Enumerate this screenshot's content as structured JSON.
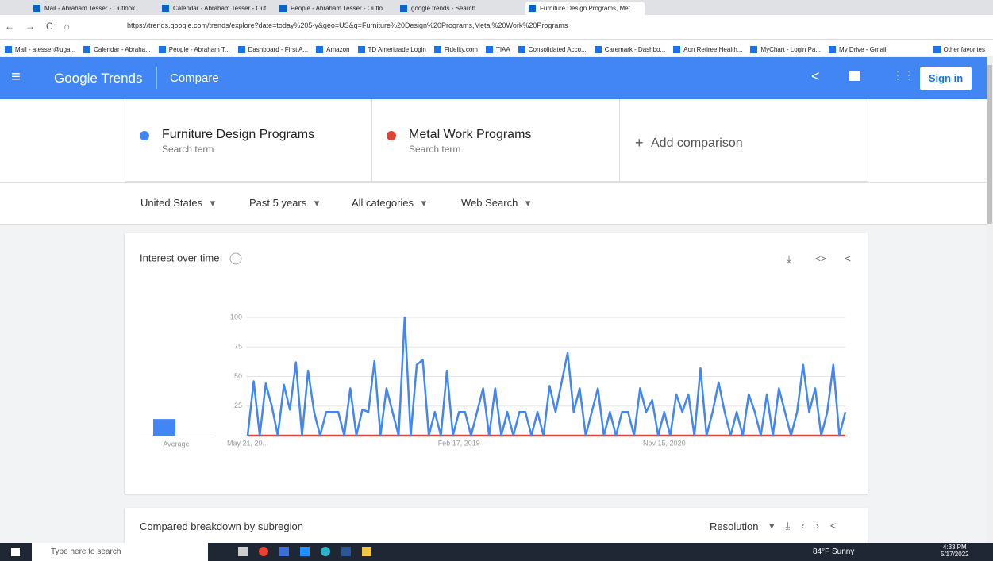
{
  "browser": {
    "tabs": [
      "Mail - Abraham Tesser - Outlook",
      "Calendar - Abraham Tesser - Out",
      "People - Abraham Tesser - Outlo",
      "google trends - Search",
      "Furniture Design Programs, Met"
    ],
    "url": "https://trends.google.com/trends/explore?date=today%205-y&geo=US&q=Furniture%20Design%20Programs,Metal%20Work%20Programs",
    "bookmarks": [
      "Mail - atesser@uga...",
      "Calendar - Abraha...",
      "People - Abraham T...",
      "Dashboard - First A...",
      "Amazon",
      "TD Ameritrade Login",
      "Fidelity.com",
      "TIAA",
      "Consolidated Acco...",
      "Caremark - Dashbo...",
      "Aon Retiree Health...",
      "MyChart - Login Pa...",
      "My Drive - Gmail"
    ],
    "other_favorites": "Other favorites"
  },
  "header": {
    "brand": "Google Trends",
    "page": "Compare",
    "sign_in": "Sign in"
  },
  "terms": {
    "kinds": [
      "Search term",
      "Search term"
    ],
    "add": "Add comparison"
  },
  "filters": [
    "United States",
    "Past 5 years",
    "All categories",
    "Web Search"
  ],
  "chart_data": {
    "type": "line",
    "title": "Interest over time",
    "average_label": "Average",
    "categories": [
      "May 21, 20...",
      null,
      null,
      null,
      null,
      null,
      null,
      null,
      null,
      null,
      null,
      null,
      null,
      null,
      null,
      null,
      null,
      null,
      null,
      null,
      null,
      null,
      null,
      null,
      null,
      null,
      null,
      null,
      null,
      null,
      null,
      null,
      null,
      null,
      null,
      "Feb 17, 2019",
      null,
      null,
      null,
      null,
      null,
      null,
      null,
      null,
      null,
      null,
      null,
      null,
      null,
      null,
      null,
      null,
      null,
      null,
      null,
      null,
      null,
      null,
      null,
      null,
      null,
      null,
      null,
      null,
      null,
      null,
      null,
      null,
      null,
      "Nov 15, 2020",
      null,
      null,
      null,
      null,
      null,
      null,
      null,
      null,
      null,
      null,
      null,
      null,
      null,
      null,
      null,
      null,
      null,
      null,
      null,
      null,
      null,
      null,
      null,
      null,
      null,
      null,
      null,
      null,
      null,
      null
    ],
    "series": [
      {
        "name": "Furniture Design Programs",
        "color": "#4285f4",
        "average": 14,
        "values": [
          0,
          46,
          0,
          44,
          25,
          0,
          43,
          22,
          62,
          0,
          55,
          20,
          0,
          20,
          20,
          20,
          0,
          40,
          0,
          22,
          20,
          63,
          0,
          40,
          20,
          0,
          100,
          0,
          60,
          64,
          0,
          20,
          0,
          55,
          0,
          20,
          20,
          0,
          20,
          40,
          0,
          40,
          0,
          20,
          0,
          20,
          20,
          0,
          20,
          0,
          42,
          20,
          45,
          70,
          20,
          40,
          0,
          20,
          40,
          0,
          20,
          0,
          20,
          20,
          0,
          40,
          20,
          30,
          0,
          20,
          0,
          35,
          20,
          35,
          0,
          57,
          0,
          20,
          45,
          20,
          0,
          20,
          0,
          35,
          20,
          0,
          35,
          0,
          40,
          20,
          0,
          20,
          60,
          20,
          40,
          0,
          20,
          60,
          0,
          20
        ]
      },
      {
        "name": "Metal Work Programs",
        "color": "#db4437",
        "average": 0,
        "values": [
          0,
          0,
          0,
          0,
          0,
          0,
          0,
          0,
          0,
          0,
          0,
          0,
          0,
          0,
          0,
          0,
          0,
          0,
          0,
          0,
          0,
          0,
          0,
          0,
          0,
          0,
          0,
          0,
          0,
          0,
          0,
          0,
          0,
          0,
          0,
          0,
          0,
          0,
          0,
          0,
          0,
          0,
          0,
          0,
          0,
          0,
          0,
          0,
          0,
          0,
          0,
          0,
          0,
          0,
          0,
          0,
          0,
          0,
          0,
          0,
          0,
          0,
          0,
          0,
          0,
          0,
          0,
          0,
          0,
          0,
          0,
          0,
          0,
          0,
          0,
          0,
          0,
          0,
          0,
          0,
          0,
          0,
          0,
          0,
          0,
          0,
          0,
          0,
          0,
          0,
          0,
          0,
          0,
          0,
          0,
          0,
          0,
          0,
          0,
          0
        ]
      }
    ],
    "ylim": [
      0,
      100
    ],
    "yticks": [
      25,
      50,
      75,
      100
    ],
    "grid": true
  },
  "next_section": {
    "title": "Compared breakdown by subregion",
    "resolution": "Resolution"
  },
  "taskbar": {
    "search": "Type here to search",
    "weather": "84°F Sunny",
    "time": "4:33 PM",
    "date": "5/17/2022"
  }
}
